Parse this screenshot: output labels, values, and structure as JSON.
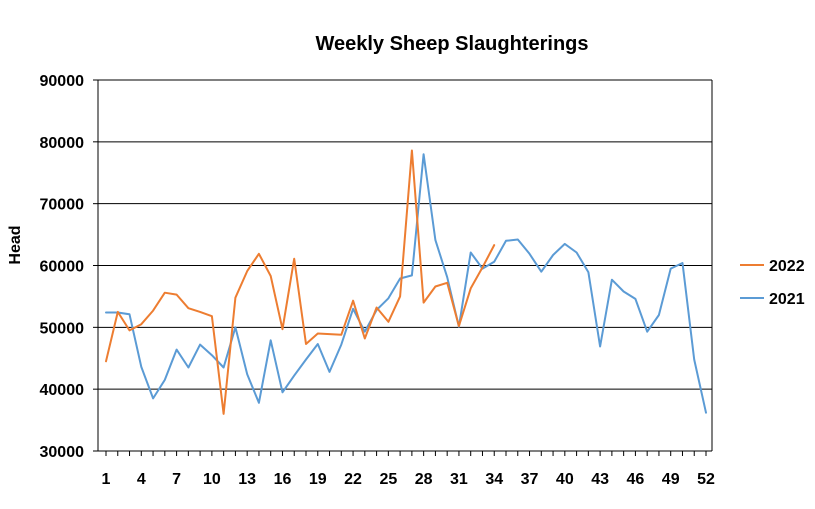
{
  "chart_data": {
    "type": "line",
    "title": "Weekly Sheep Slaughterings",
    "xlabel": "",
    "ylabel": "Head",
    "ylim": [
      30000,
      90000
    ],
    "yticks": [
      30000,
      40000,
      50000,
      60000,
      70000,
      80000,
      90000
    ],
    "xlim": [
      1,
      52
    ],
    "xticks": [
      1,
      4,
      7,
      10,
      13,
      16,
      19,
      22,
      25,
      28,
      31,
      34,
      37,
      40,
      43,
      46,
      49,
      52
    ],
    "grid": "horizontal",
    "legend_position": "right",
    "series": [
      {
        "name": "2022",
        "color": "#ED7D31",
        "x": [
          1,
          2,
          3,
          4,
          5,
          6,
          7,
          8,
          9,
          10,
          11,
          12,
          13,
          14,
          15,
          16,
          17,
          18,
          19,
          20,
          21,
          22,
          23,
          24,
          25,
          26,
          27,
          28,
          29,
          30,
          31,
          32,
          33,
          34
        ],
        "values": [
          44500,
          52500,
          49500,
          50500,
          52700,
          55600,
          55300,
          53100,
          52500,
          51800,
          36000,
          54800,
          59100,
          61900,
          58300,
          49700,
          61100,
          47300,
          49000,
          48900,
          48800,
          54300,
          48200,
          53200,
          50900,
          55000,
          78600,
          54000,
          56600,
          57200,
          50200,
          56300,
          59700,
          63300
        ]
      },
      {
        "name": "2021",
        "color": "#5B9BD5",
        "x": [
          1,
          2,
          3,
          4,
          5,
          6,
          7,
          8,
          9,
          10,
          11,
          12,
          13,
          14,
          15,
          16,
          17,
          18,
          19,
          20,
          21,
          22,
          23,
          24,
          25,
          26,
          27,
          28,
          29,
          30,
          31,
          32,
          33,
          34,
          35,
          36,
          37,
          38,
          39,
          40,
          41,
          42,
          43,
          44,
          45,
          46,
          47,
          48,
          49,
          50,
          51,
          52
        ],
        "values": [
          52400,
          52400,
          52100,
          43600,
          38500,
          41500,
          46400,
          43500,
          47200,
          45500,
          43500,
          50000,
          42400,
          37800,
          47900,
          39500,
          42200,
          44800,
          47300,
          42800,
          47200,
          53000,
          49300,
          52800,
          54700,
          57900,
          58400,
          78000,
          64100,
          58100,
          50100,
          62100,
          59500,
          60600,
          64000,
          64200,
          61900,
          59000,
          61700,
          63500,
          62100,
          58900,
          46900,
          57700,
          55800,
          54600,
          49300,
          52000,
          59500,
          60400,
          44800,
          36200
        ]
      }
    ]
  }
}
